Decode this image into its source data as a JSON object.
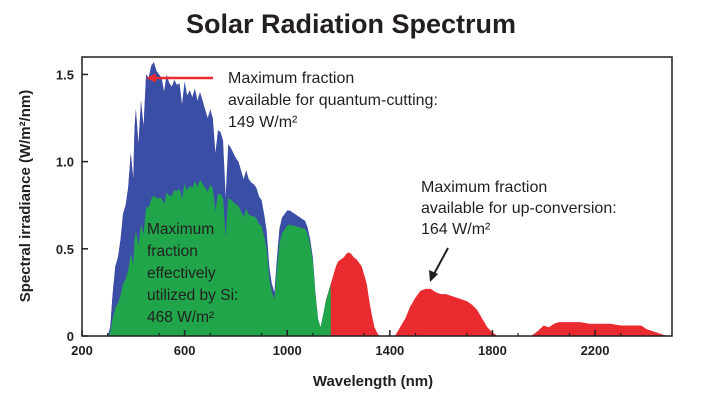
{
  "chart_data": {
    "type": "area",
    "title": "Solar Radiation Spectrum",
    "xlabel": "Wavelength (nm)",
    "ylabel": "Spectral irradiance (W/m²/nm)",
    "xlim": [
      200,
      2500
    ],
    "ylim": [
      0,
      1.6
    ],
    "xticks": [
      200,
      600,
      1000,
      1400,
      1800,
      2200
    ],
    "yticks": [
      0,
      0.5,
      1.0,
      1.5
    ],
    "ytick_labels": [
      "0",
      "0.5",
      "1.0",
      "1.5"
    ],
    "grid": false,
    "spectrum": [
      [
        300,
        0.0
      ],
      [
        310,
        0.05
      ],
      [
        320,
        0.25
      ],
      [
        330,
        0.4
      ],
      [
        340,
        0.45
      ],
      [
        350,
        0.55
      ],
      [
        360,
        0.7
      ],
      [
        370,
        0.75
      ],
      [
        380,
        0.85
      ],
      [
        390,
        1.05
      ],
      [
        400,
        0.9
      ],
      [
        405,
        1.2
      ],
      [
        410,
        1.3
      ],
      [
        420,
        1.1
      ],
      [
        430,
        1.35
      ],
      [
        440,
        1.2
      ],
      [
        450,
        1.5
      ],
      [
        460,
        1.48
      ],
      [
        470,
        1.55
      ],
      [
        480,
        1.57
      ],
      [
        490,
        1.52
      ],
      [
        500,
        1.5
      ],
      [
        510,
        1.48
      ],
      [
        520,
        1.4
      ],
      [
        530,
        1.5
      ],
      [
        540,
        1.45
      ],
      [
        550,
        1.43
      ],
      [
        560,
        1.47
      ],
      [
        570,
        1.44
      ],
      [
        580,
        1.45
      ],
      [
        590,
        1.33
      ],
      [
        600,
        1.46
      ],
      [
        610,
        1.38
      ],
      [
        620,
        1.41
      ],
      [
        630,
        1.37
      ],
      [
        640,
        1.42
      ],
      [
        650,
        1.35
      ],
      [
        660,
        1.4
      ],
      [
        670,
        1.35
      ],
      [
        680,
        1.3
      ],
      [
        690,
        1.25
      ],
      [
        700,
        1.3
      ],
      [
        710,
        1.25
      ],
      [
        720,
        1.05
      ],
      [
        730,
        1.18
      ],
      [
        740,
        1.17
      ],
      [
        750,
        1.12
      ],
      [
        760,
        0.8
      ],
      [
        770,
        1.1
      ],
      [
        780,
        1.08
      ],
      [
        790,
        1.05
      ],
      [
        800,
        1.02
      ],
      [
        810,
        1.0
      ],
      [
        820,
        0.95
      ],
      [
        830,
        0.9
      ],
      [
        840,
        0.95
      ],
      [
        850,
        0.9
      ],
      [
        860,
        0.88
      ],
      [
        870,
        0.87
      ],
      [
        880,
        0.85
      ],
      [
        890,
        0.8
      ],
      [
        900,
        0.78
      ],
      [
        910,
        0.7
      ],
      [
        920,
        0.6
      ],
      [
        930,
        0.4
      ],
      [
        940,
        0.3
      ],
      [
        950,
        0.25
      ],
      [
        960,
        0.45
      ],
      [
        970,
        0.62
      ],
      [
        980,
        0.68
      ],
      [
        990,
        0.7
      ],
      [
        1000,
        0.72
      ],
      [
        1010,
        0.72
      ],
      [
        1020,
        0.71
      ],
      [
        1030,
        0.7
      ],
      [
        1040,
        0.69
      ],
      [
        1050,
        0.68
      ],
      [
        1060,
        0.67
      ],
      [
        1070,
        0.66
      ],
      [
        1080,
        0.62
      ],
      [
        1090,
        0.55
      ],
      [
        1100,
        0.45
      ],
      [
        1110,
        0.25
      ],
      [
        1120,
        0.1
      ],
      [
        1130,
        0.05
      ],
      [
        1140,
        0.12
      ],
      [
        1150,
        0.2
      ],
      [
        1160,
        0.25
      ],
      [
        1170,
        0.3
      ],
      [
        1180,
        0.35
      ],
      [
        1190,
        0.4
      ],
      [
        1200,
        0.43
      ],
      [
        1210,
        0.44
      ],
      [
        1220,
        0.45
      ],
      [
        1230,
        0.47
      ],
      [
        1240,
        0.48
      ],
      [
        1250,
        0.47
      ],
      [
        1260,
        0.45
      ],
      [
        1270,
        0.44
      ],
      [
        1280,
        0.42
      ],
      [
        1290,
        0.4
      ],
      [
        1300,
        0.35
      ],
      [
        1310,
        0.3
      ],
      [
        1320,
        0.2
      ],
      [
        1330,
        0.12
      ],
      [
        1340,
        0.05
      ],
      [
        1350,
        0.02
      ],
      [
        1360,
        0.0
      ],
      [
        1380,
        0.0
      ],
      [
        1400,
        0.0
      ],
      [
        1420,
        0.0
      ],
      [
        1440,
        0.05
      ],
      [
        1460,
        0.1
      ],
      [
        1480,
        0.17
      ],
      [
        1500,
        0.22
      ],
      [
        1520,
        0.26
      ],
      [
        1540,
        0.27
      ],
      [
        1560,
        0.27
      ],
      [
        1580,
        0.25
      ],
      [
        1600,
        0.24
      ],
      [
        1620,
        0.24
      ],
      [
        1640,
        0.23
      ],
      [
        1660,
        0.22
      ],
      [
        1680,
        0.21
      ],
      [
        1700,
        0.2
      ],
      [
        1720,
        0.18
      ],
      [
        1740,
        0.15
      ],
      [
        1760,
        0.1
      ],
      [
        1780,
        0.05
      ],
      [
        1800,
        0.02
      ],
      [
        1820,
        0.0
      ],
      [
        1950,
        0.0
      ],
      [
        1970,
        0.02
      ],
      [
        2000,
        0.06
      ],
      [
        2020,
        0.05
      ],
      [
        2040,
        0.07
      ],
      [
        2060,
        0.08
      ],
      [
        2080,
        0.08
      ],
      [
        2100,
        0.08
      ],
      [
        2140,
        0.08
      ],
      [
        2180,
        0.07
      ],
      [
        2220,
        0.07
      ],
      [
        2260,
        0.07
      ],
      [
        2300,
        0.06
      ],
      [
        2340,
        0.06
      ],
      [
        2380,
        0.06
      ],
      [
        2400,
        0.04
      ],
      [
        2440,
        0.02
      ],
      [
        2480,
        0.0
      ]
    ],
    "si_edge_nm": 1170,
    "series": [
      {
        "color": "#7d3fa0",
        "range": [
          300,
          550
        ]
      },
      {
        "color": "#3b4ea6",
        "range": [
          300,
          1170
        ]
      },
      {
        "color": "#e92a2f",
        "range": [
          1150,
          2480
        ]
      },
      {
        "color": "#20a54a",
        "range": [
          300,
          1170
        ]
      }
    ],
    "annotations": [
      {
        "lines": [
          "Maximum fraction",
          "available for quantum-cutting:",
          "149 W/m²"
        ]
      },
      {
        "lines": [
          "Maximum fraction",
          "available for up-conversion:",
          "164 W/m²"
        ]
      },
      {
        "lines": [
          "Maximum",
          "fraction",
          "effectively",
          "utilized by Si:",
          "468 W/m²"
        ]
      }
    ],
    "colors": {
      "arrow_red": "#e92a2f",
      "arrow_black": "#231f20",
      "axis": "#231f20"
    }
  }
}
